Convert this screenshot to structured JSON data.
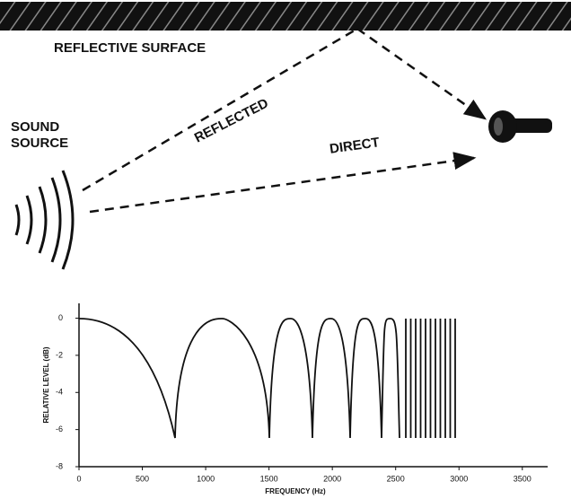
{
  "diagram": {
    "surface_label": "REFLECTIVE SURFACE",
    "source_label": [
      "SOUND",
      "SOURCE"
    ],
    "reflected_label": "REFLECTED",
    "direct_label": "DIRECT"
  },
  "chart_data": {
    "type": "line",
    "y_label": "RELATIVE LEVEL (dB)",
    "x_label": "FREQUENCY (Hz)",
    "xlim": [
      0,
      3700
    ],
    "ylim": [
      -8,
      0.8
    ],
    "xticks": [
      0,
      500,
      1000,
      1500,
      2000,
      2500,
      3000,
      3500
    ],
    "yticks": [
      0,
      -2,
      -4,
      -6,
      -8
    ]
  }
}
